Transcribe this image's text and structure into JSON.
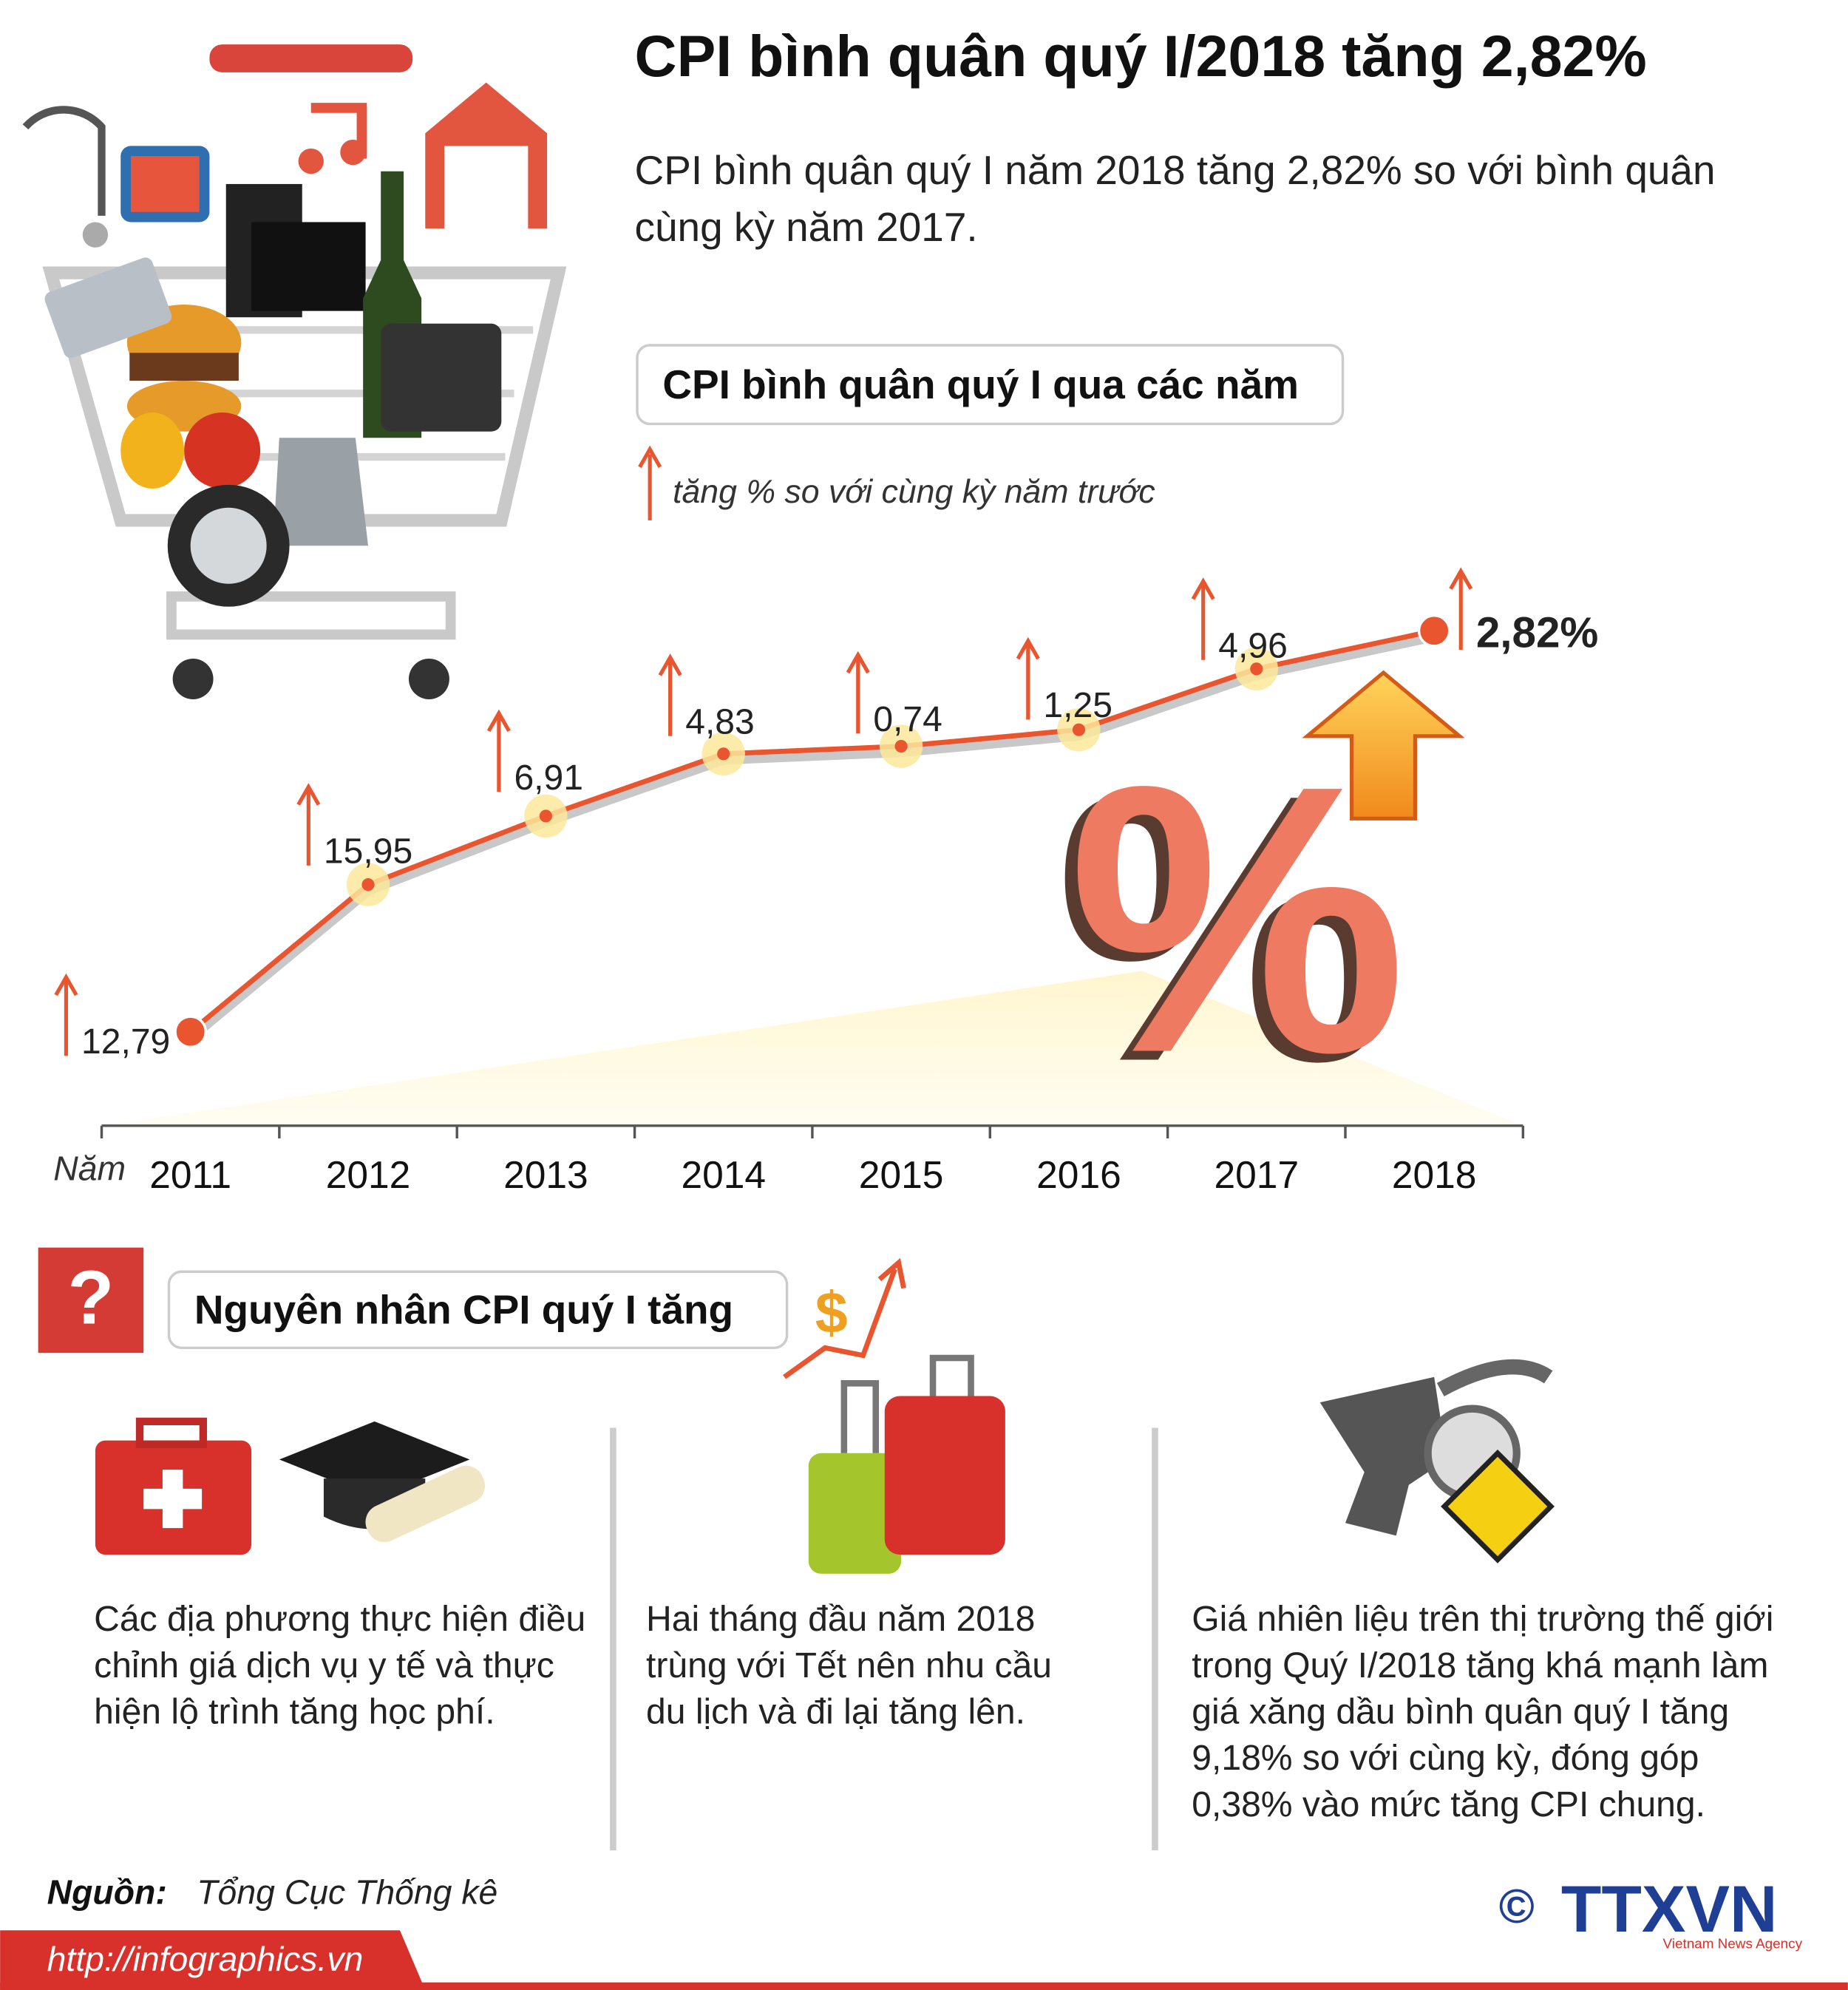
{
  "header": {
    "title": "CPI bình quân quý I/2018 tăng 2,82%",
    "subtitle_lines": [
      "CPI bình quân quý I năm 2018 tăng 2,82% so với bình quân",
      "cùng kỳ năm 2017."
    ]
  },
  "chart_data": {
    "type": "line",
    "title": "CPI bình quân quý I qua các năm",
    "legend_note": "tăng % so với cùng kỳ năm trước",
    "x_label": "Năm",
    "categories": [
      "2011",
      "2012",
      "2013",
      "2014",
      "2015",
      "2016",
      "2017",
      "2018"
    ],
    "values": [
      12.79,
      15.95,
      6.91,
      4.83,
      0.74,
      1.25,
      4.96,
      2.82
    ],
    "value_labels": [
      "12,79",
      "15,95",
      "6,91",
      "4,83",
      "0,74",
      "1,25",
      "4,96",
      "2,82%"
    ],
    "color": "#e8552f"
  },
  "illustration": {
    "percent_sign": "%",
    "question_mark": "?",
    "dollar_sign": "$"
  },
  "causes": {
    "title": "Nguyên nhân CPI quý I tăng",
    "items": [
      [
        "Các địa phương thực hiện điều",
        "chỉnh giá dịch vụ y tế và thực",
        "hiện lộ trình tăng học phí."
      ],
      [
        "Hai tháng đầu năm 2018",
        "trùng với Tết nên nhu cầu",
        "du lịch và đi lại tăng lên."
      ],
      [
        "Giá nhiên liệu trên thị trường thế giới",
        "trong Quý I/2018 tăng khá mạnh làm",
        "giá xăng dầu bình quân quý I tăng",
        "9,18% so với cùng kỳ, đóng góp",
        "0,38% vào mức tăng CPI chung."
      ]
    ]
  },
  "footer": {
    "source_label": "Nguồn:",
    "source": "Tổng Cục Thống kê",
    "url": "http://infographics.vn",
    "copyright": "©",
    "logo": "TTXVN",
    "agency": "Vietnam News Agency"
  }
}
